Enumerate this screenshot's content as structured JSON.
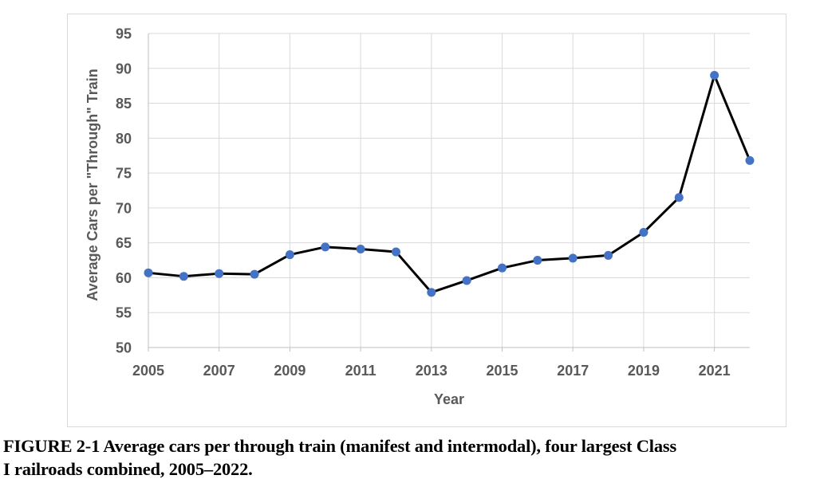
{
  "chart_data": {
    "type": "line",
    "title": "",
    "xlabel": "Year",
    "ylabel": "Average Cars per \"Through\" Train",
    "x": [
      2005,
      2006,
      2007,
      2008,
      2009,
      2010,
      2011,
      2012,
      2013,
      2014,
      2015,
      2016,
      2017,
      2018,
      2019,
      2020,
      2021,
      2022
    ],
    "values": [
      60.7,
      60.2,
      60.6,
      60.5,
      63.3,
      64.4,
      64.1,
      63.7,
      57.9,
      59.6,
      61.4,
      62.5,
      62.8,
      63.2,
      66.5,
      71.5,
      89.0,
      76.8
    ],
    "ylim": [
      50,
      95
    ],
    "yticks": [
      50,
      55,
      60,
      65,
      70,
      75,
      80,
      85,
      90,
      95
    ],
    "xticks": [
      2005,
      2007,
      2009,
      2011,
      2013,
      2015,
      2017,
      2019,
      2021
    ],
    "grid": true,
    "legend_position": "none",
    "colors": {
      "line": "#000000",
      "marker": "#4472C4",
      "gridline": "#D9D9D9",
      "axis": "#BFBFBF",
      "tick_label": "#595959",
      "axis_title": "#595959",
      "chart_border": "#D9D9D9",
      "background": "#FFFFFF"
    }
  },
  "caption": {
    "line1": "FIGURE 2-1 Average cars per through train (manifest and intermodal), four largest Class",
    "line2": "I railroads combined, 2005–2022."
  }
}
